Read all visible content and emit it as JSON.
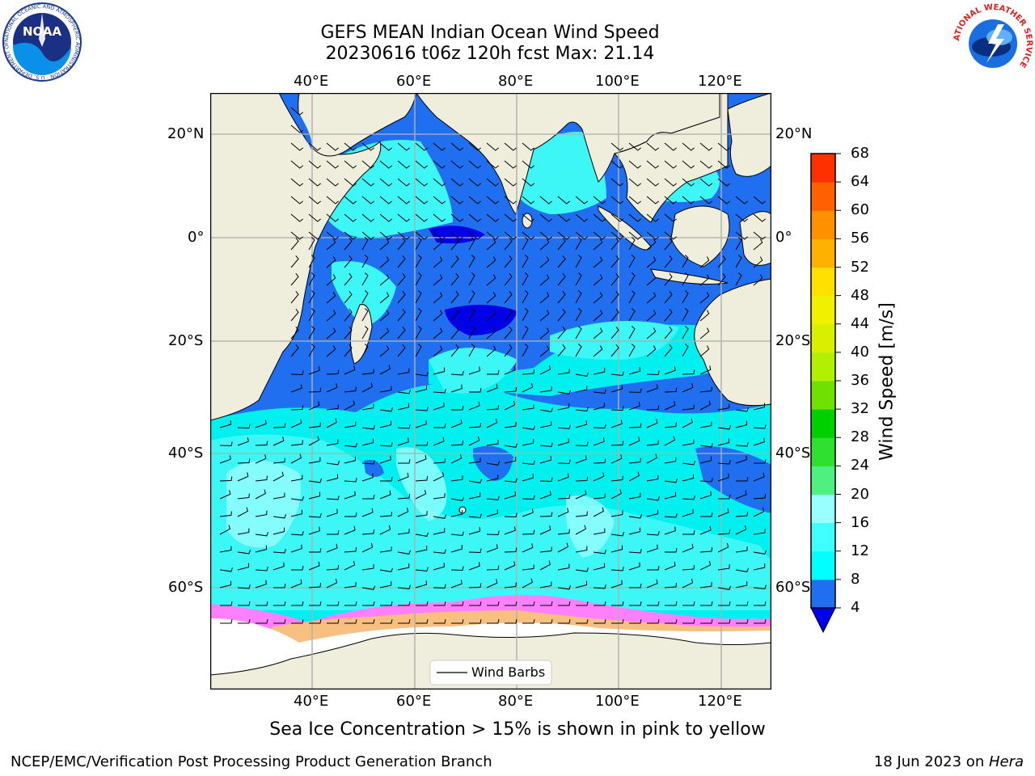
{
  "title": {
    "line1": "GEFS MEAN Indian Ocean Wind Speed",
    "line2": "20230616 t06z 120h fcst   Max: 21.14"
  },
  "map": {
    "lon_ticks": [
      "40°E",
      "60°E",
      "80°E",
      "100°E",
      "120°E"
    ],
    "lat_ticks": [
      "20°N",
      "0°",
      "20°S",
      "40°S",
      "60°S"
    ],
    "legend": "Wind Barbs",
    "colors": {
      "land": "#efeedd",
      "ice": "#ffffff",
      "sea_4_8": "#1f6ff0",
      "sea_8_12": "#00f0f0",
      "sea_12_16": "#3df6f6",
      "sea_16_20": "#99ffff",
      "low": "#0000e8"
    }
  },
  "colorbar": {
    "label": "Wind Speed [m/s]",
    "ticks": [
      "4",
      "8",
      "12",
      "16",
      "20",
      "24",
      "28",
      "32",
      "36",
      "40",
      "44",
      "48",
      "52",
      "56",
      "60",
      "64",
      "68"
    ],
    "colors": [
      "#1f6ff0",
      "#00ffff",
      "#40ffff",
      "#99ffff",
      "#50f080",
      "#30e030",
      "#00d000",
      "#70e000",
      "#b0f000",
      "#d8f000",
      "#f0f000",
      "#ffe000",
      "#ffb000",
      "#ff9000",
      "#ff6000",
      "#ff3000",
      "#ff0000"
    ]
  },
  "caption": "Sea Ice Concentration > 15% is shown in pink to yellow",
  "footer": {
    "left": "NCEP/EMC/Verification Post Processing Product Generation Branch",
    "right_prefix": "18 Jun 2023 on ",
    "right_host": "Hera"
  },
  "logos": {
    "noaa": "NOAA",
    "noaa_ring": "NATIONAL OCEANIC AND ATMOSPHERIC ADMINISTRATION · U.S. DEPARTMENT OF COMMERCE",
    "nws_ring": "NATIONAL WEATHER SERVICE"
  }
}
